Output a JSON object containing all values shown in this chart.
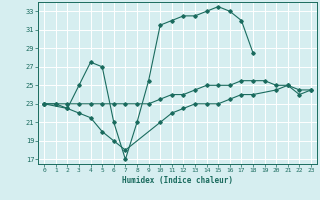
{
  "xlabel": "Humidex (Indice chaleur)",
  "background_color": "#d6eef0",
  "grid_color": "#ffffff",
  "line_color": "#1a6b5e",
  "xlim": [
    -0.5,
    23.5
  ],
  "ylim": [
    16.5,
    34.0
  ],
  "xticks": [
    0,
    1,
    2,
    3,
    4,
    5,
    6,
    7,
    8,
    9,
    10,
    11,
    12,
    13,
    14,
    15,
    16,
    17,
    18,
    19,
    20,
    21,
    22,
    23
  ],
  "yticks": [
    17,
    19,
    21,
    23,
    25,
    27,
    29,
    31,
    33
  ],
  "line1_x": [
    0,
    1,
    2,
    3,
    4,
    5,
    6,
    7,
    8,
    9,
    10,
    11,
    12,
    13,
    14,
    15,
    16,
    17,
    18,
    19,
    20,
    21,
    22,
    23
  ],
  "line1_y": [
    23,
    23,
    23,
    23,
    23,
    23,
    23,
    23,
    23,
    23,
    23.5,
    24,
    24,
    24.5,
    25,
    25,
    25,
    25.5,
    25.5,
    25.5,
    25,
    25,
    24.5,
    24.5
  ],
  "line2_x": [
    0,
    1,
    2,
    3,
    4,
    5,
    6,
    7,
    8,
    9,
    10,
    11,
    12,
    13,
    14,
    15,
    16,
    17,
    18,
    19,
    20,
    21,
    22,
    23
  ],
  "line2_y": [
    23,
    23,
    22.5,
    25,
    27.5,
    27,
    21,
    17,
    21,
    25.5,
    31.5,
    32,
    32.5,
    32.5,
    33,
    33.5,
    33,
    32,
    28.5,
    null,
    null,
    null,
    null,
    null
  ],
  "line3_x": [
    0,
    2,
    3,
    4,
    5,
    6,
    7,
    10,
    11,
    12,
    13,
    14,
    15,
    16,
    17,
    18,
    20,
    21,
    22,
    23
  ],
  "line3_y": [
    23,
    22.5,
    22,
    21.5,
    20,
    19,
    18,
    21,
    22,
    22.5,
    23,
    23,
    23,
    23.5,
    24,
    24,
    24.5,
    25,
    24,
    24.5
  ]
}
